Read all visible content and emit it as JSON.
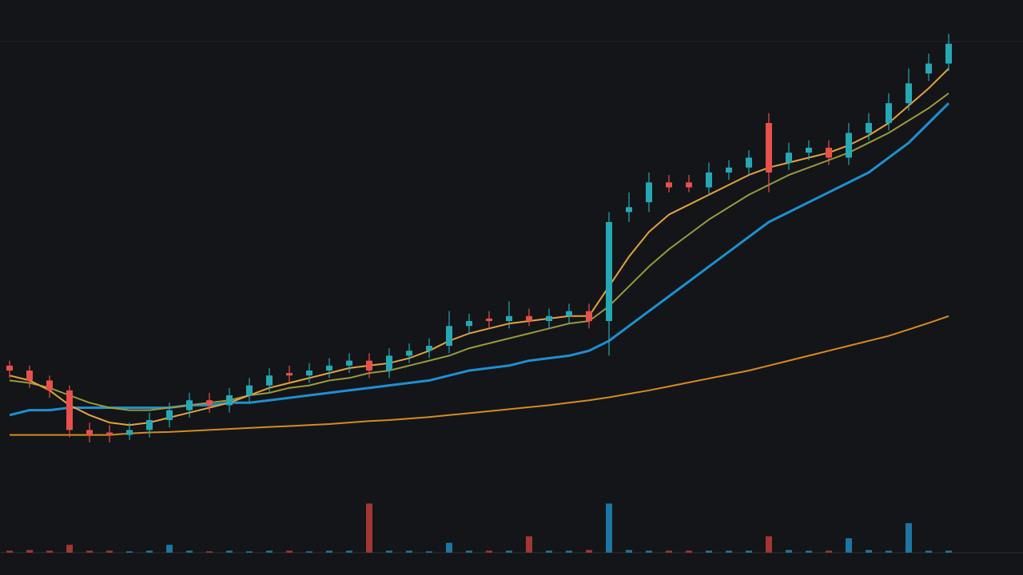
{
  "chart_data": {
    "type": "candlestick",
    "up_color": "#26a8b4",
    "down_color": "#e8504a",
    "ylim": [
      0,
      100
    ],
    "open": [
      31,
      30,
      28,
      26,
      18,
      17.5,
      17,
      18,
      20,
      22,
      24,
      23,
      25,
      27,
      29.5,
      29,
      30,
      31,
      32,
      30,
      33,
      34,
      35,
      39,
      40.5,
      40,
      41,
      40,
      41,
      42,
      40,
      62,
      64,
      68,
      68,
      67,
      70,
      71,
      80,
      72,
      74,
      75,
      73,
      78,
      80,
      84,
      90,
      92
    ],
    "close": [
      30,
      28,
      26,
      18,
      17,
      17,
      18,
      20,
      22,
      24,
      23,
      25,
      27,
      29,
      29,
      30,
      31,
      32,
      30,
      33,
      34,
      35,
      39,
      40,
      40,
      41,
      40,
      41,
      42,
      40,
      60,
      63,
      68,
      67,
      67,
      70,
      71,
      73,
      70,
      74,
      75,
      73,
      78,
      80,
      84,
      88,
      92,
      96
    ],
    "high": [
      32,
      31,
      29,
      27,
      19.5,
      19,
      19.5,
      21.5,
      23.5,
      25.5,
      25.5,
      26.5,
      28.5,
      30.5,
      31,
      31.5,
      32.5,
      33.5,
      33.5,
      34.5,
      35.5,
      36.5,
      42,
      41.5,
      42,
      44,
      42.5,
      42.5,
      43.5,
      43.5,
      62,
      66,
      70,
      69.5,
      69.5,
      72,
      72.5,
      74.5,
      82,
      76,
      76.5,
      76.5,
      80,
      82,
      86,
      91,
      94,
      98
    ],
    "low": [
      28.5,
      26.5,
      24.5,
      16.5,
      15.5,
      15.5,
      16,
      16.5,
      18.5,
      20.5,
      21.5,
      21.5,
      23.5,
      25.5,
      27.5,
      27.5,
      28.5,
      29.5,
      28.5,
      28.5,
      31.5,
      32.5,
      33.5,
      37.5,
      38.5,
      38.5,
      39,
      38.5,
      39.5,
      38.5,
      33,
      60,
      62,
      66,
      66,
      65.5,
      68.5,
      69.5,
      66,
      70.5,
      72.5,
      71.5,
      71.5,
      76.5,
      78.5,
      82.5,
      88.5,
      90.5
    ],
    "lines": [
      {
        "color": "#e6a23c",
        "values": [
          29,
          28,
          26,
          23,
          21,
          19.5,
          19,
          19.5,
          20.5,
          21.5,
          22.5,
          23.5,
          25,
          26.5,
          27.5,
          28.5,
          29.5,
          30.5,
          31,
          31.5,
          32.5,
          34,
          36,
          37.5,
          38.5,
          39.5,
          40,
          40.5,
          41,
          41,
          47,
          53,
          58,
          61.5,
          63.5,
          65.5,
          67.5,
          69.5,
          71,
          72,
          73,
          74,
          75.5,
          77.5,
          80,
          83.5,
          87,
          91
        ]
      },
      {
        "color": "#9a9a3c",
        "values": [
          28,
          27.5,
          26.5,
          25,
          23.5,
          22.5,
          22,
          22,
          22.5,
          23,
          23.5,
          24,
          25,
          25.5,
          26.5,
          27,
          28,
          28.5,
          29.5,
          30,
          31,
          32,
          33,
          34.5,
          35.5,
          36.5,
          37.5,
          38.5,
          39.5,
          40,
          43,
          47,
          51,
          54.5,
          57.5,
          60.5,
          63,
          65.5,
          67.5,
          69.5,
          71,
          72.5,
          74,
          76,
          78,
          80.5,
          83,
          86
        ]
      },
      {
        "color": "#1e90d0",
        "values": [
          21,
          22,
          22,
          22.5,
          22.5,
          22.5,
          22.5,
          22.5,
          22.5,
          23,
          23,
          23.5,
          23.5,
          24,
          24.5,
          25,
          25.5,
          26,
          26.5,
          27,
          27.5,
          28,
          29,
          30,
          30.5,
          31,
          32,
          32.5,
          33,
          34,
          36,
          39,
          42,
          45,
          48,
          51,
          54,
          57,
          60,
          62,
          64,
          66,
          68,
          70,
          73,
          76,
          80,
          84
        ]
      },
      {
        "color": "#d98a20",
        "values": [
          17,
          17,
          17,
          17,
          17,
          17,
          17.3,
          17.5,
          17.6,
          17.8,
          18,
          18.2,
          18.4,
          18.6,
          18.8,
          19,
          19.2,
          19.5,
          19.8,
          20,
          20.3,
          20.6,
          21,
          21.4,
          21.8,
          22.2,
          22.6,
          23,
          23.5,
          24,
          24.6,
          25.3,
          26,
          26.8,
          27.6,
          28.4,
          29.2,
          30,
          31,
          32,
          33,
          34,
          35,
          36,
          37,
          38.3,
          39.6,
          41
        ]
      }
    ],
    "volume_ylim": [
      0,
      100
    ],
    "volume": [
      3,
      4,
      3,
      12,
      3,
      3,
      2,
      3,
      12,
      3,
      2,
      3,
      2,
      3,
      3,
      2,
      3,
      3,
      75,
      3,
      3,
      2,
      15,
      3,
      3,
      3,
      25,
      3,
      3,
      4,
      75,
      4,
      3,
      3,
      3,
      3,
      3,
      3,
      25,
      4,
      3,
      3,
      22,
      4,
      3,
      45,
      3,
      3
    ]
  }
}
